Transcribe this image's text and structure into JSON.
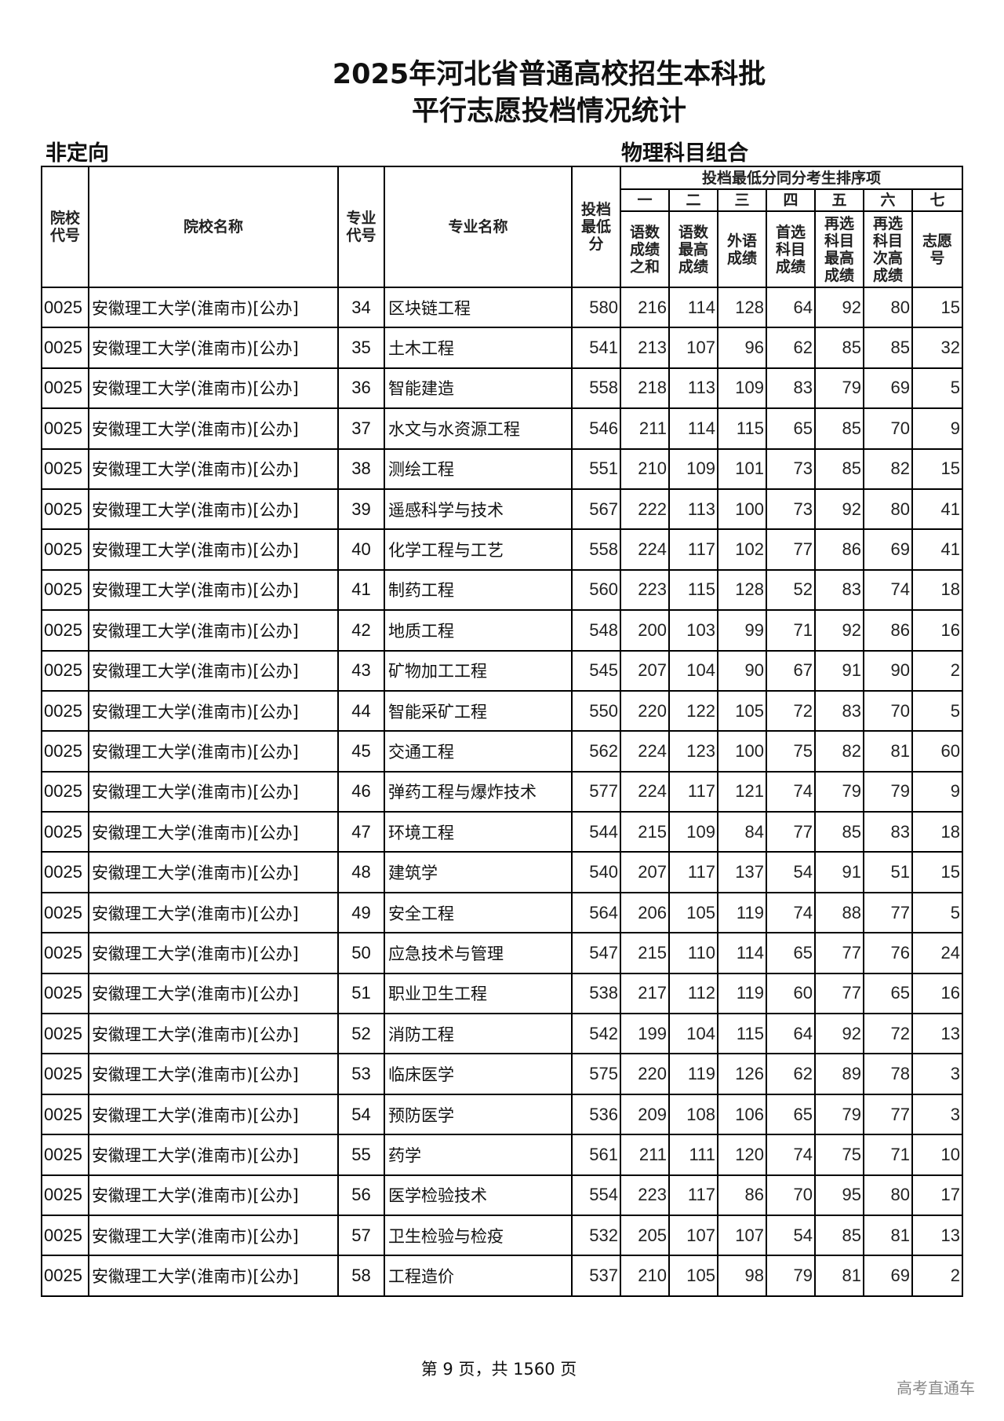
{
  "title": {
    "line1": "2025年河北省普通高校招生本科批",
    "line2": "平行志愿投档情况统计"
  },
  "subtitle_left": "非定向",
  "subtitle_right": "物理科目组合",
  "table": {
    "headers": {
      "school_code": "院校代号",
      "school_name": "院校名称",
      "major_code": "专业代号",
      "major_name": "专业名称",
      "min_score": "投档最低分",
      "tiebreak_group": "投档最低分同分考生排序项",
      "tiebreak_numbers": [
        "一",
        "二",
        "三",
        "四",
        "五",
        "六",
        "七"
      ],
      "tiebreak_items": [
        "语数成绩之和",
        "语数最高成绩",
        "外语成绩",
        "首选科目成绩",
        "再选科目最高成绩",
        "再选科目次高成绩",
        "志愿号"
      ]
    },
    "rows": [
      [
        "0025",
        "安徽理工大学(淮南市)[公办]",
        "34",
        "区块链工程",
        "580",
        "216",
        "114",
        "128",
        "64",
        "92",
        "80",
        "15"
      ],
      [
        "0025",
        "安徽理工大学(淮南市)[公办]",
        "35",
        "土木工程",
        "541",
        "213",
        "107",
        "96",
        "62",
        "85",
        "85",
        "32"
      ],
      [
        "0025",
        "安徽理工大学(淮南市)[公办]",
        "36",
        "智能建造",
        "558",
        "218",
        "113",
        "109",
        "83",
        "79",
        "69",
        "5"
      ],
      [
        "0025",
        "安徽理工大学(淮南市)[公办]",
        "37",
        "水文与水资源工程",
        "546",
        "211",
        "114",
        "115",
        "65",
        "85",
        "70",
        "9"
      ],
      [
        "0025",
        "安徽理工大学(淮南市)[公办]",
        "38",
        "测绘工程",
        "551",
        "210",
        "109",
        "101",
        "73",
        "85",
        "82",
        "15"
      ],
      [
        "0025",
        "安徽理工大学(淮南市)[公办]",
        "39",
        "遥感科学与技术",
        "567",
        "222",
        "113",
        "100",
        "73",
        "92",
        "80",
        "41"
      ],
      [
        "0025",
        "安徽理工大学(淮南市)[公办]",
        "40",
        "化学工程与工艺",
        "558",
        "224",
        "117",
        "102",
        "77",
        "86",
        "69",
        "41"
      ],
      [
        "0025",
        "安徽理工大学(淮南市)[公办]",
        "41",
        "制药工程",
        "560",
        "223",
        "115",
        "128",
        "52",
        "83",
        "74",
        "18"
      ],
      [
        "0025",
        "安徽理工大学(淮南市)[公办]",
        "42",
        "地质工程",
        "548",
        "200",
        "103",
        "99",
        "71",
        "92",
        "86",
        "16"
      ],
      [
        "0025",
        "安徽理工大学(淮南市)[公办]",
        "43",
        "矿物加工工程",
        "545",
        "207",
        "104",
        "90",
        "67",
        "91",
        "90",
        "2"
      ],
      [
        "0025",
        "安徽理工大学(淮南市)[公办]",
        "44",
        "智能采矿工程",
        "550",
        "220",
        "122",
        "105",
        "72",
        "83",
        "70",
        "5"
      ],
      [
        "0025",
        "安徽理工大学(淮南市)[公办]",
        "45",
        "交通工程",
        "562",
        "224",
        "123",
        "100",
        "75",
        "82",
        "81",
        "60"
      ],
      [
        "0025",
        "安徽理工大学(淮南市)[公办]",
        "46",
        "弹药工程与爆炸技术",
        "577",
        "224",
        "117",
        "121",
        "74",
        "79",
        "79",
        "9"
      ],
      [
        "0025",
        "安徽理工大学(淮南市)[公办]",
        "47",
        "环境工程",
        "544",
        "215",
        "109",
        "84",
        "77",
        "85",
        "83",
        "18"
      ],
      [
        "0025",
        "安徽理工大学(淮南市)[公办]",
        "48",
        "建筑学",
        "540",
        "207",
        "117",
        "137",
        "54",
        "91",
        "51",
        "15"
      ],
      [
        "0025",
        "安徽理工大学(淮南市)[公办]",
        "49",
        "安全工程",
        "564",
        "206",
        "105",
        "119",
        "74",
        "88",
        "77",
        "5"
      ],
      [
        "0025",
        "安徽理工大学(淮南市)[公办]",
        "50",
        "应急技术与管理",
        "547",
        "215",
        "110",
        "114",
        "65",
        "77",
        "76",
        "24"
      ],
      [
        "0025",
        "安徽理工大学(淮南市)[公办]",
        "51",
        "职业卫生工程",
        "538",
        "217",
        "112",
        "119",
        "60",
        "77",
        "65",
        "16"
      ],
      [
        "0025",
        "安徽理工大学(淮南市)[公办]",
        "52",
        "消防工程",
        "542",
        "199",
        "104",
        "115",
        "64",
        "92",
        "72",
        "13"
      ],
      [
        "0025",
        "安徽理工大学(淮南市)[公办]",
        "53",
        "临床医学",
        "575",
        "220",
        "119",
        "126",
        "62",
        "89",
        "78",
        "3"
      ],
      [
        "0025",
        "安徽理工大学(淮南市)[公办]",
        "54",
        "预防医学",
        "536",
        "209",
        "108",
        "106",
        "65",
        "79",
        "77",
        "3"
      ],
      [
        "0025",
        "安徽理工大学(淮南市)[公办]",
        "55",
        "药学",
        "561",
        "211",
        "111",
        "120",
        "74",
        "75",
        "71",
        "10"
      ],
      [
        "0025",
        "安徽理工大学(淮南市)[公办]",
        "56",
        "医学检验技术",
        "554",
        "223",
        "117",
        "86",
        "70",
        "95",
        "80",
        "17"
      ],
      [
        "0025",
        "安徽理工大学(淮南市)[公办]",
        "57",
        "卫生检验与检疫",
        "532",
        "205",
        "107",
        "107",
        "54",
        "85",
        "81",
        "13"
      ],
      [
        "0025",
        "安徽理工大学(淮南市)[公办]",
        "58",
        "工程造价",
        "537",
        "210",
        "105",
        "98",
        "79",
        "81",
        "69",
        "2"
      ]
    ]
  },
  "footer": "第 9 页，共 1560 页",
  "watermark": "高考直通车"
}
